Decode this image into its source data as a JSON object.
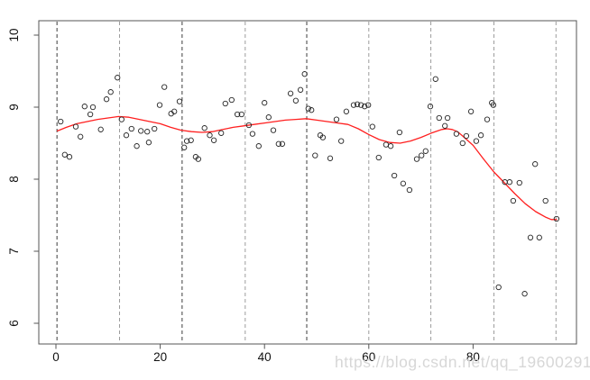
{
  "watermark": {
    "text": "https://blog.csdn.net/qq_19600291",
    "color": "#d7d7d7"
  },
  "chart_data": {
    "type": "scatter",
    "title": "",
    "xlabel": "",
    "ylabel": "",
    "x_ticks": [
      0,
      20,
      40,
      60,
      80
    ],
    "x_tick_labels": [
      "0",
      "20",
      "40",
      "60",
      "80"
    ],
    "y_ticks": [
      6,
      7,
      8,
      9,
      10
    ],
    "y_tick_labels": [
      "6",
      "7",
      "8",
      "9",
      "10"
    ],
    "xlim": [
      -3.3,
      99.8
    ],
    "ylim": [
      5.7,
      10.2
    ],
    "grid": "vertical dashed reference lines every ~12 x-units",
    "legend_position": "none",
    "point_color": "#262626",
    "smooth_color": "#ff1f1f",
    "vline_colors": {
      "dark": "#3c3c3c",
      "light": "#9c9c9c"
    },
    "box_color": "#555555",
    "vlines": [
      {
        "x": 0.2,
        "tone": "dark"
      },
      {
        "x": 12.2,
        "tone": "light"
      },
      {
        "x": 24.2,
        "tone": "dark"
      },
      {
        "x": 36.3,
        "tone": "light"
      },
      {
        "x": 48.1,
        "tone": "dark"
      },
      {
        "x": 60.0,
        "tone": "light"
      },
      {
        "x": 71.9,
        "tone": "light"
      },
      {
        "x": 84.0,
        "tone": "light"
      },
      {
        "x": 95.9,
        "tone": "light"
      }
    ],
    "points": [
      [
        0.9,
        8.8
      ],
      [
        1.7,
        8.34
      ],
      [
        2.6,
        8.31
      ],
      [
        3.8,
        8.73
      ],
      [
        4.7,
        8.59
      ],
      [
        5.5,
        9.01
      ],
      [
        6.6,
        8.9
      ],
      [
        7.1,
        9.0
      ],
      [
        8.6,
        8.69
      ],
      [
        9.7,
        9.11
      ],
      [
        10.5,
        9.21
      ],
      [
        11.8,
        9.41
      ],
      [
        12.6,
        8.83
      ],
      [
        13.5,
        8.61
      ],
      [
        14.5,
        8.7
      ],
      [
        15.5,
        8.46
      ],
      [
        16.3,
        8.67
      ],
      [
        17.5,
        8.66
      ],
      [
        17.8,
        8.51
      ],
      [
        18.9,
        8.7
      ],
      [
        19.9,
        9.03
      ],
      [
        20.8,
        9.28
      ],
      [
        22.1,
        8.91
      ],
      [
        22.7,
        8.94
      ],
      [
        23.7,
        9.08
      ],
      [
        24.6,
        8.44
      ],
      [
        25.1,
        8.53
      ],
      [
        25.9,
        8.54
      ],
      [
        26.8,
        8.31
      ],
      [
        27.3,
        8.28
      ],
      [
        28.5,
        8.71
      ],
      [
        29.5,
        8.61
      ],
      [
        30.3,
        8.54
      ],
      [
        31.7,
        8.64
      ],
      [
        32.5,
        9.05
      ],
      [
        33.7,
        9.1
      ],
      [
        34.8,
        8.9
      ],
      [
        35.6,
        8.9
      ],
      [
        37.0,
        8.75
      ],
      [
        37.7,
        8.63
      ],
      [
        38.9,
        8.46
      ],
      [
        40.0,
        9.06
      ],
      [
        40.8,
        8.86
      ],
      [
        41.7,
        8.68
      ],
      [
        42.7,
        8.49
      ],
      [
        43.4,
        8.49
      ],
      [
        45.0,
        9.19
      ],
      [
        46.0,
        9.09
      ],
      [
        46.9,
        9.24
      ],
      [
        47.7,
        9.46
      ],
      [
        48.4,
        8.98
      ],
      [
        49.0,
        8.96
      ],
      [
        49.7,
        8.33
      ],
      [
        50.7,
        8.61
      ],
      [
        51.2,
        8.58
      ],
      [
        52.6,
        8.29
      ],
      [
        53.8,
        8.83
      ],
      [
        54.7,
        8.53
      ],
      [
        55.7,
        8.94
      ],
      [
        57.1,
        9.03
      ],
      [
        57.8,
        9.04
      ],
      [
        58.5,
        9.03
      ],
      [
        59.2,
        9.01
      ],
      [
        59.9,
        9.03
      ],
      [
        60.7,
        8.73
      ],
      [
        61.9,
        8.3
      ],
      [
        63.3,
        8.48
      ],
      [
        64.2,
        8.46
      ],
      [
        64.9,
        8.05
      ],
      [
        65.9,
        8.65
      ],
      [
        66.6,
        7.94
      ],
      [
        67.8,
        7.85
      ],
      [
        69.2,
        8.28
      ],
      [
        70.1,
        8.33
      ],
      [
        70.9,
        8.39
      ],
      [
        71.8,
        9.01
      ],
      [
        72.8,
        9.39
      ],
      [
        73.5,
        8.85
      ],
      [
        74.6,
        8.74
      ],
      [
        75.1,
        8.85
      ],
      [
        76.8,
        8.63
      ],
      [
        78.0,
        8.5
      ],
      [
        78.7,
        8.6
      ],
      [
        79.6,
        8.94
      ],
      [
        80.6,
        8.53
      ],
      [
        81.5,
        8.61
      ],
      [
        82.7,
        8.83
      ],
      [
        83.6,
        9.06
      ],
      [
        83.9,
        9.03
      ],
      [
        84.9,
        6.5
      ],
      [
        86.1,
        7.96
      ],
      [
        87.0,
        7.96
      ],
      [
        87.7,
        7.7
      ],
      [
        88.9,
        7.95
      ],
      [
        89.9,
        6.41
      ],
      [
        91.0,
        7.19
      ],
      [
        91.9,
        8.21
      ],
      [
        92.7,
        7.19
      ],
      [
        93.9,
        7.7
      ],
      [
        96.0,
        7.45
      ]
    ],
    "smooth_line": [
      [
        0.3,
        8.67
      ],
      [
        2,
        8.72
      ],
      [
        4,
        8.77
      ],
      [
        6,
        8.8
      ],
      [
        8,
        8.83
      ],
      [
        10,
        8.85
      ],
      [
        12,
        8.87
      ],
      [
        14,
        8.86
      ],
      [
        16,
        8.83
      ],
      [
        18,
        8.8
      ],
      [
        20,
        8.77
      ],
      [
        22,
        8.72
      ],
      [
        24,
        8.68
      ],
      [
        26,
        8.66
      ],
      [
        28,
        8.65
      ],
      [
        30,
        8.66
      ],
      [
        32,
        8.69
      ],
      [
        34,
        8.72
      ],
      [
        36,
        8.74
      ],
      [
        38,
        8.76
      ],
      [
        40,
        8.78
      ],
      [
        42,
        8.8
      ],
      [
        44,
        8.82
      ],
      [
        46,
        8.83
      ],
      [
        48,
        8.84
      ],
      [
        50,
        8.82
      ],
      [
        52,
        8.8
      ],
      [
        54,
        8.78
      ],
      [
        56,
        8.76
      ],
      [
        58,
        8.7
      ],
      [
        60,
        8.62
      ],
      [
        62,
        8.55
      ],
      [
        64,
        8.51
      ],
      [
        66,
        8.5
      ],
      [
        68,
        8.53
      ],
      [
        70,
        8.58
      ],
      [
        72,
        8.64
      ],
      [
        74,
        8.69
      ],
      [
        75,
        8.7
      ],
      [
        76,
        8.69
      ],
      [
        77,
        8.66
      ],
      [
        78,
        8.6
      ],
      [
        80,
        8.47
      ],
      [
        82,
        8.28
      ],
      [
        84,
        8.1
      ],
      [
        86,
        7.95
      ],
      [
        88,
        7.8
      ],
      [
        90,
        7.66
      ],
      [
        92,
        7.55
      ],
      [
        94,
        7.47
      ],
      [
        95,
        7.44
      ],
      [
        96,
        7.44
      ]
    ]
  }
}
